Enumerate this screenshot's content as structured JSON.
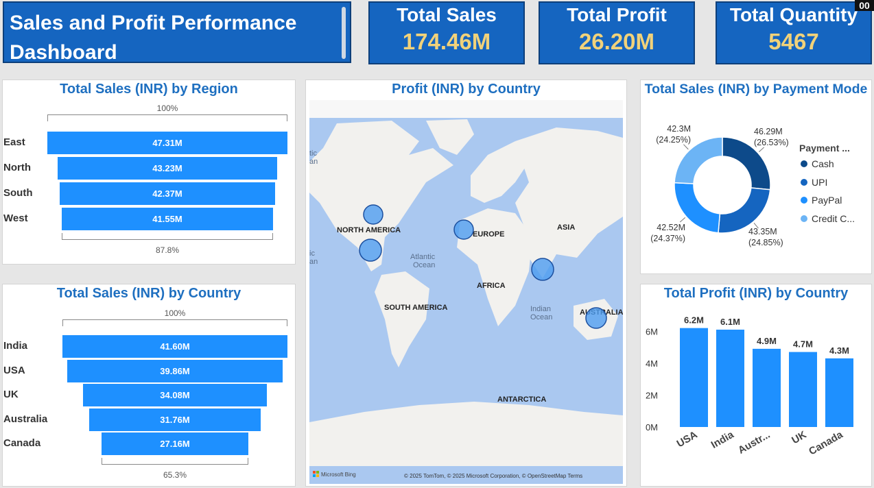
{
  "header": {
    "title": "Sales and Profit Performance Dashboard",
    "kpis": [
      {
        "label": "Total Sales",
        "value": "174.46M"
      },
      {
        "label": "Total Profit",
        "value": "26.20M"
      },
      {
        "label": "Total Quantity",
        "value": "5467"
      }
    ],
    "corner_badge": "00"
  },
  "chart_data": [
    {
      "type": "bar",
      "title": "Total Sales (INR) by Region",
      "categories": [
        "East",
        "North",
        "South",
        "West"
      ],
      "values": [
        47.31,
        43.23,
        42.37,
        41.55
      ],
      "value_labels": [
        "47.31M",
        "43.23M",
        "42.37M",
        "41.55M"
      ],
      "top_pct_label": "100%",
      "bottom_pct_label": "87.8%"
    },
    {
      "type": "bar",
      "title": "Total Sales (INR) by Country",
      "categories": [
        "India",
        "USA",
        "UK",
        "Australia",
        "Canada"
      ],
      "values": [
        41.6,
        39.86,
        34.08,
        31.76,
        27.16
      ],
      "value_labels": [
        "41.60M",
        "39.86M",
        "34.08M",
        "31.76M",
        "27.16M"
      ],
      "top_pct_label": "100%",
      "bottom_pct_label": "65.3%"
    },
    {
      "type": "scatter",
      "title": "Profit (INR) by Country",
      "map_labels": [
        "NORTH AMERICA",
        "EUROPE",
        "ASIA",
        "AFRICA",
        "SOUTH AMERICA",
        "ANTARCTICA",
        "AUSTRALIA"
      ],
      "ocean_labels": [
        "Atlantic",
        "Ocean",
        "Indian",
        "Ocean"
      ],
      "edge_labels": [
        "tic",
        "an",
        "ic",
        "an"
      ],
      "attribution": "© 2025 TomTom, © 2025 Microsoft Corporation, © OpenStreetMap  Terms",
      "bing_logo": "Microsoft Bing"
    },
    {
      "type": "pie",
      "title": "Total Sales (INR) by Payment Mode",
      "legend_title": "Payment ...",
      "categories": [
        "Cash",
        "UPI",
        "PayPal",
        "Credit C..."
      ],
      "values": [
        46.29,
        43.35,
        42.52,
        42.3
      ],
      "value_labels": [
        "46.29M",
        "43.35M",
        "42.52M",
        "42.3M"
      ],
      "percent_labels": [
        "(26.53%)",
        "(24.85%)",
        "(24.37%)",
        "(24.25%)"
      ],
      "colors": [
        "#0d4a8a",
        "#1565c0",
        "#1e90ff",
        "#6cb4f5"
      ]
    },
    {
      "type": "bar",
      "title": "Total Profit (INR) by Country",
      "categories": [
        "USA",
        "India",
        "Austr...",
        "UK",
        "Canada"
      ],
      "values": [
        6.2,
        6.1,
        4.9,
        4.7,
        4.3
      ],
      "value_labels": [
        "6.2M",
        "6.1M",
        "4.9M",
        "4.7M",
        "4.3M"
      ],
      "y_ticks": [
        "0M",
        "2M",
        "4M",
        "6M"
      ],
      "ylim": [
        0,
        7
      ]
    }
  ]
}
